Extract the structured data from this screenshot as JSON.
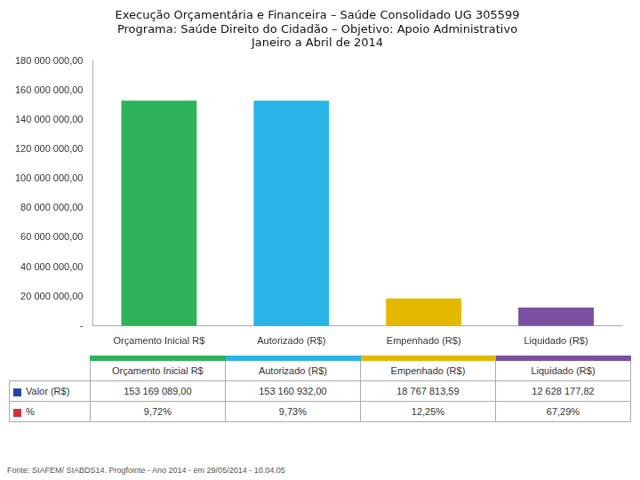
{
  "chart_data": {
    "type": "bar",
    "title": [
      "Execução Orçamentária e Financeira – Saúde Consolidado UG 305599",
      "Programa: Saúde Direito do Cidadão – Objetivo: Apoio Administrativo",
      "Janeiro a Abril de 2014"
    ],
    "categories": [
      "Orçamento Inicial R$",
      "Autorizado (R$)",
      "Empenhado (R$)",
      "Liquidado (R$)"
    ],
    "values": [
      153169089.0,
      153160932.0,
      18767813.59,
      12628177.82
    ],
    "colors": [
      "#2db25a",
      "#29b5e8",
      "#e5b800",
      "#7a4fa0"
    ],
    "ylim": [
      0,
      180000000
    ],
    "yticks": [
      {
        "value": 0,
        "label": "-"
      },
      {
        "value": 20000000,
        "label": "20 000 000,00"
      },
      {
        "value": 40000000,
        "label": "40 000 000,00"
      },
      {
        "value": 60000000,
        "label": "60 000 000,00"
      },
      {
        "value": 80000000,
        "label": "80 000 000,00"
      },
      {
        "value": 100000000,
        "label": "100 000 000,00"
      },
      {
        "value": 120000000,
        "label": "120 000 000,00"
      },
      {
        "value": 140000000,
        "label": "140 000 000,00"
      },
      {
        "value": 160000000,
        "label": "160 000 000,00"
      },
      {
        "value": 180000000,
        "label": "180 000 000,00"
      }
    ],
    "grid": false,
    "legend": false,
    "table": [
      {
        "label": "Valor (R$)",
        "color": "#2244aa",
        "cells": [
          "153 169 089,00",
          "153 160 932,00",
          "18 767 813,59",
          "12 628 177,82"
        ]
      },
      {
        "label": "%",
        "color": "#cc3333",
        "cells": [
          "9,72%",
          "9,73%",
          "12,25%",
          "67,29%"
        ]
      }
    ],
    "annotations": [
      "Fonte: SIAFEM/ SIABDS14. Progfointe - Ano 2014 - em 29/05/2014 - 10.04.05"
    ]
  }
}
